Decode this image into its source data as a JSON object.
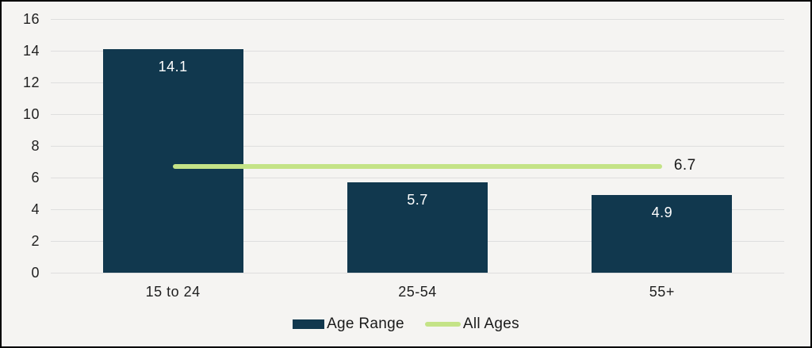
{
  "chart_data": {
    "type": "bar",
    "title": "",
    "xlabel": "",
    "ylabel": "",
    "categories": [
      "15 to 24",
      "25-54",
      "55+"
    ],
    "series": [
      {
        "name": "Age Range",
        "type": "bar",
        "values": [
          14.1,
          5.7,
          4.9
        ],
        "data_labels": [
          "14.1",
          "5.7",
          "4.9"
        ],
        "color": "#11384E"
      },
      {
        "name": "All Ages",
        "type": "line",
        "value": 6.7,
        "data_label": "6.7",
        "color": "#C4E387"
      }
    ],
    "ylim": [
      0,
      16
    ],
    "yticks": [
      0,
      2,
      4,
      6,
      8,
      10,
      12,
      14,
      16
    ],
    "grid": true,
    "legend_position": "bottom"
  },
  "legend": {
    "items": [
      {
        "label": "Age Range",
        "swatch_type": "bar",
        "color": "#11384E"
      },
      {
        "label": "All Ages",
        "swatch_type": "line",
        "color": "#C4E387"
      }
    ]
  },
  "colors": {
    "background": "#F5F4F2",
    "border": "#000000",
    "gridline": "#DEDEDE",
    "axis_text": "#1F1F1F",
    "bar": "#11384E",
    "line": "#C4E387",
    "bar_label_text": "#FFFFFF"
  }
}
